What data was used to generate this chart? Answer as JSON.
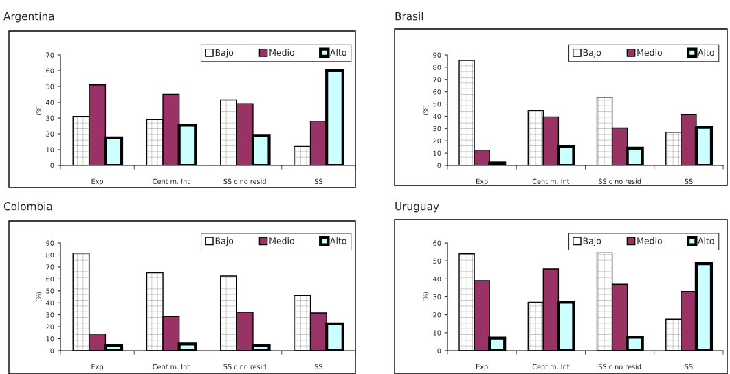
{
  "chart_data": [
    {
      "type": "bar",
      "title": "Argentina",
      "ylabel": "(%)",
      "categories": [
        "Exp",
        "Cent m. Int",
        "SS c no resid",
        "SS"
      ],
      "ylim": [
        0,
        70
      ],
      "yticks": [
        0,
        10,
        20,
        30,
        40,
        50,
        60,
        70
      ],
      "legend": "top right",
      "series": [
        {
          "name": "Bajo",
          "color": "#ffffff",
          "values": [
            31,
            29,
            41.5,
            12
          ]
        },
        {
          "name": "Medio",
          "color": "#993366",
          "values": [
            51,
            45,
            39,
            28
          ]
        },
        {
          "name": "Alto",
          "color": "#ccffff",
          "values": [
            17.5,
            25.5,
            19,
            60
          ]
        }
      ]
    },
    {
      "type": "bar",
      "title": "Brasil",
      "ylabel": "(%)",
      "categories": [
        "Exp",
        "Cent m. Int",
        "SS c no resid",
        "SS"
      ],
      "ylim": [
        0,
        90
      ],
      "yticks": [
        0,
        10,
        20,
        30,
        40,
        50,
        60,
        70,
        80,
        90
      ],
      "legend": "top right",
      "series": [
        {
          "name": "Bajo",
          "color": "#ffffff",
          "values": [
            85.5,
            44.5,
            55.5,
            27
          ]
        },
        {
          "name": "Medio",
          "color": "#993366",
          "values": [
            12.5,
            39.5,
            30.5,
            41.5
          ]
        },
        {
          "name": "Alto",
          "color": "#ccffff",
          "values": [
            2,
            15.5,
            14,
            31
          ]
        }
      ]
    },
    {
      "type": "bar",
      "title": "Colombia",
      "ylabel": "(%)",
      "categories": [
        "Exp",
        "Cent m. Int",
        "SS c no resid",
        "SS"
      ],
      "ylim": [
        0,
        90
      ],
      "yticks": [
        0,
        10,
        20,
        30,
        40,
        50,
        60,
        70,
        80,
        90
      ],
      "legend": "top right",
      "series": [
        {
          "name": "Bajo",
          "color": "#ffffff",
          "values": [
            81.5,
            65,
            62.5,
            46
          ]
        },
        {
          "name": "Medio",
          "color": "#993366",
          "values": [
            14,
            28.5,
            32,
            31.5
          ]
        },
        {
          "name": "Alto",
          "color": "#ccffff",
          "values": [
            4,
            5.5,
            4.5,
            22.5
          ]
        }
      ]
    },
    {
      "type": "bar",
      "title": "Uruguay",
      "ylabel": "(%)",
      "categories": [
        "Exp",
        "Cent m. Int",
        "SS c no resid",
        "SS"
      ],
      "ylim": [
        0,
        60
      ],
      "yticks": [
        0,
        10,
        20,
        30,
        40,
        50,
        60
      ],
      "legend": "top right",
      "series": [
        {
          "name": "Bajo",
          "color": "#ffffff",
          "values": [
            54,
            27,
            54.5,
            17.5
          ]
        },
        {
          "name": "Medio",
          "color": "#993366",
          "values": [
            39,
            45.5,
            37,
            33
          ]
        },
        {
          "name": "Alto",
          "color": "#ccffff",
          "values": [
            7,
            27,
            7.5,
            48.5
          ]
        }
      ]
    }
  ]
}
